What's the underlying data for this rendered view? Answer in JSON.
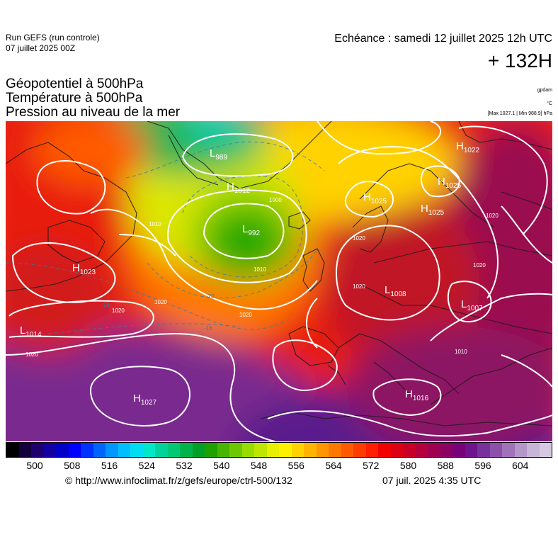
{
  "header": {
    "run_title": "Run GEFS (run controle)",
    "run_date": "07 juillet 2025 00Z",
    "valid_time": "Echéance : samedi 12 juillet 2025 12h UTC",
    "lead_time": "+ 132H"
  },
  "parameters": [
    "Géopotentiel à 500hPa",
    "Température à 500hPa",
    "Pression au niveau de la mer"
  ],
  "units": {
    "geopotential": "gpdam",
    "temperature": "°C",
    "pressure_range": "[Max 1027.1 | Min 988.9] hPa"
  },
  "pressure_centers": [
    {
      "type": "L",
      "value": "989"
    },
    {
      "type": "H",
      "value": "1012"
    },
    {
      "type": "L",
      "value": "992"
    },
    {
      "type": "H",
      "value": "1023"
    },
    {
      "type": "L",
      "value": "1014"
    },
    {
      "type": "H",
      "value": "1027"
    },
    {
      "type": "H",
      "value": "1025"
    },
    {
      "type": "H",
      "value": "1025"
    },
    {
      "type": "H",
      "value": "1025"
    },
    {
      "type": "H",
      "value": "1022"
    },
    {
      "type": "L",
      "value": "1008"
    },
    {
      "type": "L",
      "value": "1007"
    },
    {
      "type": "H",
      "value": "1016"
    }
  ],
  "isobar_labels": [
    "1010",
    "1000",
    "1010",
    "1020",
    "1020",
    "1020",
    "1020",
    "1020",
    "1020",
    "1010",
    "1020",
    "1020"
  ],
  "isotherm_labels": [
    "-20",
    "-16",
    "-16"
  ],
  "colorbar": {
    "tick_labels": [
      "500",
      "508",
      "516",
      "524",
      "532",
      "540",
      "548",
      "556",
      "564",
      "572",
      "580",
      "588",
      "596",
      "604"
    ],
    "colors": [
      "#000000",
      "#14003c",
      "#1e006e",
      "#1400a0",
      "#0000c8",
      "#0000ff",
      "#0032ff",
      "#0064ff",
      "#0096ff",
      "#00beff",
      "#00dcf0",
      "#00e6c8",
      "#00d29b",
      "#00c873",
      "#00b44b",
      "#00a028",
      "#1ea000",
      "#46b400",
      "#6ec800",
      "#96dc00",
      "#bee600",
      "#e6f000",
      "#fff000",
      "#ffd200",
      "#ffb400",
      "#ff9600",
      "#ff7800",
      "#ff5a00",
      "#ff3c00",
      "#ff1e00",
      "#f00000",
      "#dc0014",
      "#c80028",
      "#b4003c",
      "#a00050",
      "#8c0064",
      "#780078",
      "#6e148c",
      "#78329b",
      "#8c50aa",
      "#a073b9",
      "#b496c8",
      "#c8b4d7",
      "#d7c8e1"
    ]
  },
  "footer": {
    "credit": "© http://www.infoclimat.fr/z/gefs/europe/ctrl-500/132",
    "generated": "07 juil. 2025  4:35 UTC"
  }
}
